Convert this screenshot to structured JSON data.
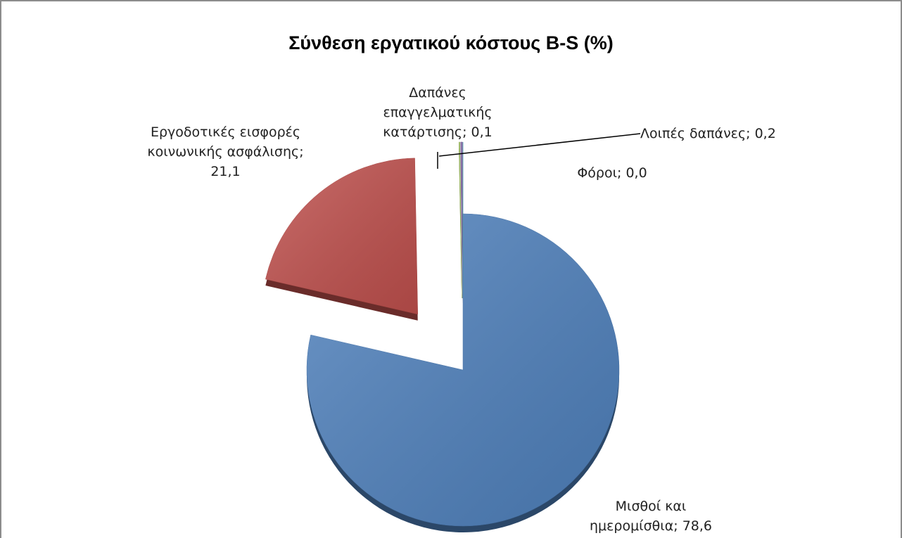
{
  "chart_data": {
    "type": "pie",
    "title": "Σύνθεση εργατικού κόστους B-S (%)",
    "categories": [
      "Μισθοί και ημερομίσθια",
      "Εργοδοτικές εισφορές κοινωνικής ασφάλισης",
      "Δαπάνες επαγγελματικής κατάρτισης",
      "Λοιπές δαπάνες",
      "Φόροι"
    ],
    "values": [
      78.6,
      21.1,
      0.1,
      0.2,
      0.0
    ],
    "value_labels": [
      "78,6",
      "21,1",
      "0,1",
      "0,2",
      "0,0"
    ],
    "label_separator": "; ",
    "colors": [
      "#4f81bd",
      "#c0504d",
      "#9bbb59",
      "#8064a2",
      "#4bacc6"
    ],
    "exploded": [
      false,
      true,
      true,
      true,
      true
    ]
  }
}
